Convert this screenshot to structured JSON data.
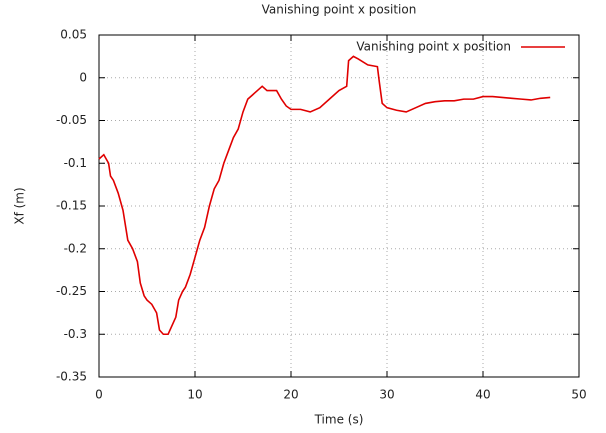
{
  "chart_data": {
    "type": "line",
    "title": "Vanishing point x position",
    "xlabel": "Time (s)",
    "ylabel": "Xf (m)",
    "xlim": [
      0,
      50
    ],
    "xticks": [
      0,
      10,
      20,
      30,
      40,
      50
    ],
    "ylim": [
      -0.35,
      0.05
    ],
    "yticks": [
      0.05,
      0,
      -0.05,
      -0.1,
      -0.15,
      -0.2,
      -0.25,
      -0.3,
      -0.35
    ],
    "grid": true,
    "legend": "upper right",
    "series": [
      {
        "name": "Vanishing point x position",
        "color": "#e00000",
        "x": [
          0,
          0.5,
          1,
          1.2,
          1.5,
          2,
          2.5,
          3,
          3.5,
          4,
          4.3,
          4.7,
          5,
          5.5,
          6,
          6.3,
          6.7,
          7.2,
          7.6,
          8,
          8.3,
          8.7,
          9,
          9.5,
          10,
          10.5,
          11,
          11.5,
          12,
          12.5,
          13,
          13.5,
          14,
          14.5,
          15,
          15.5,
          16,
          16.5,
          17,
          17.5,
          18,
          18.5,
          19,
          19.5,
          20,
          21,
          22,
          23,
          24,
          25,
          25.8,
          26,
          26.5,
          27,
          28,
          29,
          29.2,
          29.5,
          30,
          31,
          32,
          33,
          34,
          35,
          36,
          37,
          38,
          39,
          40,
          41,
          42,
          43,
          44,
          45,
          46,
          47
        ],
        "values": [
          -0.095,
          -0.09,
          -0.1,
          -0.115,
          -0.12,
          -0.135,
          -0.155,
          -0.19,
          -0.2,
          -0.215,
          -0.24,
          -0.255,
          -0.26,
          -0.265,
          -0.275,
          -0.295,
          -0.3,
          -0.3,
          -0.29,
          -0.28,
          -0.26,
          -0.25,
          -0.245,
          -0.23,
          -0.21,
          -0.19,
          -0.175,
          -0.15,
          -0.13,
          -0.12,
          -0.1,
          -0.085,
          -0.07,
          -0.06,
          -0.04,
          -0.025,
          -0.02,
          -0.015,
          -0.01,
          -0.015,
          -0.015,
          -0.015,
          -0.025,
          -0.033,
          -0.037,
          -0.037,
          -0.04,
          -0.035,
          -0.025,
          -0.015,
          -0.01,
          0.02,
          0.025,
          0.022,
          0.015,
          0.013,
          -0.005,
          -0.03,
          -0.035,
          -0.038,
          -0.04,
          -0.035,
          -0.03,
          -0.028,
          -0.027,
          -0.027,
          -0.025,
          -0.025,
          -0.022,
          -0.022,
          -0.023,
          -0.024,
          -0.025,
          -0.026,
          -0.024,
          -0.023
        ]
      }
    ]
  }
}
